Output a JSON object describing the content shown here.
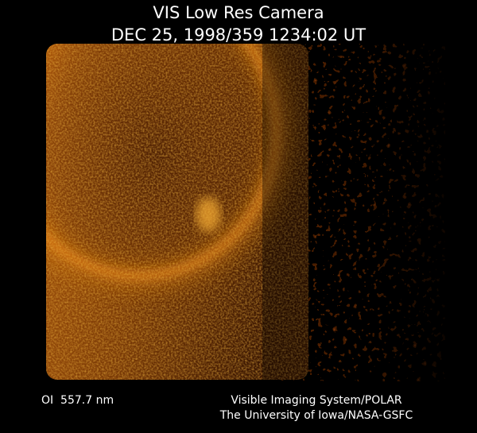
{
  "header": {
    "title": "VIS Low Res Camera",
    "timestamp": "DEC 25, 1998/359 1234:02 UT"
  },
  "footer": {
    "wavelength": "OI  557.7 nm",
    "credit_lines": [
      "Visible Imaging System/POLAR",
      "The University of Iowa/NASA-GSFC"
    ]
  }
}
